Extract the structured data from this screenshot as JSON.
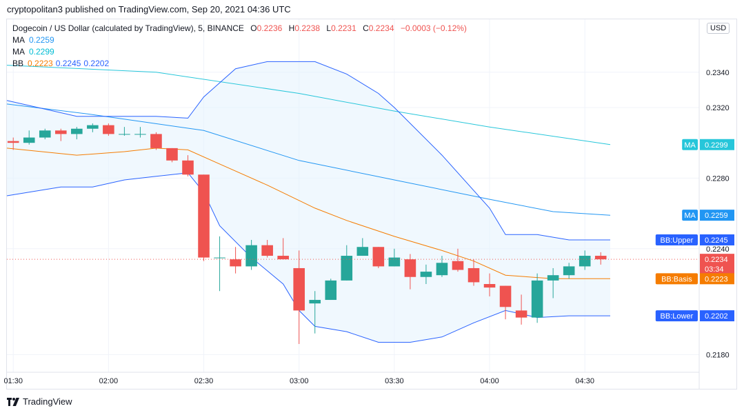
{
  "header": {
    "publisher": "cryptopolitan3 published on TradingView.com, Sep 20, 2021 04:36 UTC"
  },
  "legend": {
    "title": "Dogecoin / US Dollar (calculated by TradingView), 5, BINANCE",
    "ohlc": {
      "o_label": "O",
      "o": "0.2236",
      "h_label": "H",
      "h": "0.2238",
      "l_label": "L",
      "l": "0.2231",
      "c_label": "C",
      "c": "0.2234",
      "change": "−0.0003 (−0.12%)"
    },
    "indicators": [
      {
        "label": "MA",
        "values": [
          "0.2259"
        ],
        "colors": [
          "#2196f3"
        ]
      },
      {
        "label": "MA",
        "values": [
          "0.2299"
        ],
        "colors": [
          "#00bcd4"
        ]
      },
      {
        "label": "BB",
        "values": [
          "0.2223",
          "0.2245",
          "0.2202"
        ],
        "colors": [
          "#f57c00",
          "#2962ff",
          "#2962ff"
        ]
      }
    ]
  },
  "currency": "USD",
  "price_labels": [
    {
      "text": "MA",
      "value": "0.2299",
      "price": 0.2299,
      "color": "#26c6da"
    },
    {
      "text": "MA",
      "value": "0.2259",
      "price": 0.2259,
      "color": "#2196f3"
    },
    {
      "text": "BB:Upper",
      "value": "0.2245",
      "price": 0.2245,
      "color": "#2962ff"
    },
    {
      "text": "",
      "value": "0.2234",
      "sub": "03:34",
      "price": 0.2234,
      "color": "#ef5350"
    },
    {
      "text": "BB:Basis",
      "value": "0.2223",
      "price": 0.2223,
      "color": "#f57c00"
    },
    {
      "text": "BB:Lower",
      "value": "0.2202",
      "price": 0.2202,
      "color": "#2962ff"
    }
  ],
  "footer": {
    "brand": "TradingView"
  },
  "chart_data": {
    "type": "candlestick",
    "interval_minutes": 5,
    "y_ticks": [
      "0.2340",
      "0.2320",
      "0.2280",
      "0.2240",
      "0.2180"
    ],
    "y_range": [
      0.217,
      0.237
    ],
    "x_ticks": [
      {
        "label": "01:30",
        "time": "01:30"
      },
      {
        "label": "02:00",
        "time": "02:00"
      },
      {
        "label": "02:30",
        "time": "02:30"
      },
      {
        "label": "03:00",
        "time": "03:00"
      },
      {
        "label": "03:30",
        "time": "03:30"
      },
      {
        "label": "04:00",
        "time": "04:00"
      },
      {
        "label": "04:30",
        "time": "04:30"
      }
    ],
    "x_range": [
      "01:28",
      "05:06"
    ],
    "colors": {
      "up": "#26a69a",
      "down": "#ef5350",
      "band_fill": "#e3f2fd"
    },
    "candles": [
      {
        "t": "01:30",
        "o": 0.2301,
        "h": 0.2303,
        "l": 0.2296,
        "c": 0.23
      },
      {
        "t": "01:35",
        "o": 0.23,
        "h": 0.2307,
        "l": 0.2299,
        "c": 0.2303
      },
      {
        "t": "01:40",
        "o": 0.2303,
        "h": 0.2308,
        "l": 0.2302,
        "c": 0.2307
      },
      {
        "t": "01:45",
        "o": 0.2307,
        "h": 0.2308,
        "l": 0.2301,
        "c": 0.2305
      },
      {
        "t": "01:50",
        "o": 0.2305,
        "h": 0.2309,
        "l": 0.2302,
        "c": 0.2308
      },
      {
        "t": "01:55",
        "o": 0.2308,
        "h": 0.2311,
        "l": 0.2306,
        "c": 0.231
      },
      {
        "t": "02:00",
        "o": 0.231,
        "h": 0.2311,
        "l": 0.2304,
        "c": 0.2305
      },
      {
        "t": "02:05",
        "o": 0.2305,
        "h": 0.2309,
        "l": 0.2304,
        "c": 0.2305
      },
      {
        "t": "02:10",
        "o": 0.2305,
        "h": 0.2309,
        "l": 0.2303,
        "c": 0.2305
      },
      {
        "t": "02:15",
        "o": 0.2305,
        "h": 0.2306,
        "l": 0.2296,
        "c": 0.2297
      },
      {
        "t": "02:20",
        "o": 0.2297,
        "h": 0.2297,
        "l": 0.2289,
        "c": 0.229
      },
      {
        "t": "02:25",
        "o": 0.229,
        "h": 0.2293,
        "l": 0.2281,
        "c": 0.2282
      },
      {
        "t": "02:30",
        "o": 0.2282,
        "h": 0.2282,
        "l": 0.2233,
        "c": 0.2235
      },
      {
        "t": "02:35",
        "o": 0.2235,
        "h": 0.2247,
        "l": 0.2216,
        "c": 0.2235
      },
      {
        "t": "02:40",
        "o": 0.2234,
        "h": 0.2241,
        "l": 0.2226,
        "c": 0.223
      },
      {
        "t": "02:45",
        "o": 0.223,
        "h": 0.2245,
        "l": 0.2228,
        "c": 0.2242
      },
      {
        "t": "02:50",
        "o": 0.2242,
        "h": 0.2245,
        "l": 0.2235,
        "c": 0.2236
      },
      {
        "t": "02:55",
        "o": 0.2236,
        "h": 0.2246,
        "l": 0.2234,
        "c": 0.2234
      },
      {
        "t": "03:00",
        "o": 0.2229,
        "h": 0.2239,
        "l": 0.2186,
        "c": 0.2205
      },
      {
        "t": "03:05",
        "o": 0.2209,
        "h": 0.2216,
        "l": 0.2192,
        "c": 0.2211
      },
      {
        "t": "03:10",
        "o": 0.2211,
        "h": 0.2223,
        "l": 0.2211,
        "c": 0.2222
      },
      {
        "t": "03:15",
        "o": 0.2222,
        "h": 0.2242,
        "l": 0.2222,
        "c": 0.2236
      },
      {
        "t": "03:20",
        "o": 0.2236,
        "h": 0.2246,
        "l": 0.2236,
        "c": 0.2241
      },
      {
        "t": "03:25",
        "o": 0.2241,
        "h": 0.2241,
        "l": 0.2229,
        "c": 0.223
      },
      {
        "t": "03:30",
        "o": 0.223,
        "h": 0.224,
        "l": 0.223,
        "c": 0.2235
      },
      {
        "t": "03:35",
        "o": 0.2234,
        "h": 0.2237,
        "l": 0.2217,
        "c": 0.2224
      },
      {
        "t": "03:40",
        "o": 0.2224,
        "h": 0.2231,
        "l": 0.222,
        "c": 0.2227
      },
      {
        "t": "03:45",
        "o": 0.2225,
        "h": 0.2236,
        "l": 0.2224,
        "c": 0.2232
      },
      {
        "t": "03:50",
        "o": 0.2233,
        "h": 0.224,
        "l": 0.2227,
        "c": 0.2228
      },
      {
        "t": "03:55",
        "o": 0.2229,
        "h": 0.2234,
        "l": 0.2219,
        "c": 0.2221
      },
      {
        "t": "04:00",
        "o": 0.222,
        "h": 0.2226,
        "l": 0.2213,
        "c": 0.2218
      },
      {
        "t": "04:05",
        "o": 0.2219,
        "h": 0.2219,
        "l": 0.22,
        "c": 0.2207
      },
      {
        "t": "04:10",
        "o": 0.2205,
        "h": 0.2214,
        "l": 0.2197,
        "c": 0.2201
      },
      {
        "t": "04:15",
        "o": 0.2201,
        "h": 0.2226,
        "l": 0.2198,
        "c": 0.2222
      },
      {
        "t": "04:20",
        "o": 0.2222,
        "h": 0.2229,
        "l": 0.2212,
        "c": 0.2225
      },
      {
        "t": "04:25",
        "o": 0.2225,
        "h": 0.2232,
        "l": 0.2223,
        "c": 0.223
      },
      {
        "t": "04:30",
        "o": 0.223,
        "h": 0.2239,
        "l": 0.2228,
        "c": 0.2236
      },
      {
        "t": "04:35",
        "o": 0.2236,
        "h": 0.2238,
        "l": 0.2231,
        "c": 0.2234
      }
    ],
    "lines": [
      {
        "id": "ma-fast",
        "color": "#2196f3",
        "points": [
          [
            "01:28",
            0.2322
          ],
          [
            "01:55",
            0.2316
          ],
          [
            "02:30",
            0.2307
          ],
          [
            "03:00",
            0.229
          ],
          [
            "03:30",
            0.2279
          ],
          [
            "04:00",
            0.2268
          ],
          [
            "04:20",
            0.2261
          ],
          [
            "04:38",
            0.2259
          ]
        ]
      },
      {
        "id": "ma-slow",
        "color": "#26c6da",
        "points": [
          [
            "01:28",
            0.2344
          ],
          [
            "02:15",
            0.234
          ],
          [
            "03:00",
            0.2328
          ],
          [
            "03:30",
            0.2318
          ],
          [
            "04:00",
            0.2309
          ],
          [
            "04:38",
            0.2299
          ]
        ]
      },
      {
        "id": "bb-basis",
        "color": "#f57c00",
        "points": [
          [
            "01:28",
            0.2297
          ],
          [
            "01:50",
            0.2293
          ],
          [
            "02:05",
            0.2295
          ],
          [
            "02:15",
            0.2297
          ],
          [
            "02:25",
            0.2296
          ],
          [
            "02:35",
            0.2288
          ],
          [
            "02:50",
            0.2276
          ],
          [
            "03:05",
            0.2263
          ],
          [
            "03:15",
            0.2256
          ],
          [
            "03:30",
            0.2247
          ],
          [
            "03:45",
            0.2239
          ],
          [
            "03:55",
            0.2233
          ],
          [
            "04:05",
            0.2225
          ],
          [
            "04:20",
            0.2223
          ],
          [
            "04:38",
            0.2223
          ]
        ]
      },
      {
        "id": "bb-upper",
        "color": "#2962ff",
        "points": [
          [
            "01:28",
            0.2324
          ],
          [
            "01:50",
            0.2315
          ],
          [
            "02:15",
            0.2315
          ],
          [
            "02:25",
            0.2314
          ],
          [
            "02:30",
            0.2326
          ],
          [
            "02:40",
            0.2342
          ],
          [
            "02:50",
            0.2346
          ],
          [
            "03:00",
            0.2346
          ],
          [
            "03:05",
            0.2346
          ],
          [
            "03:15",
            0.2339
          ],
          [
            "03:25",
            0.2328
          ],
          [
            "03:30",
            0.232
          ],
          [
            "03:45",
            0.2293
          ],
          [
            "04:00",
            0.2263
          ],
          [
            "04:05",
            0.2248
          ],
          [
            "04:15",
            0.2248
          ],
          [
            "04:25",
            0.2245
          ],
          [
            "04:38",
            0.2245
          ]
        ]
      },
      {
        "id": "bb-lower",
        "color": "#2962ff",
        "points": [
          [
            "01:28",
            0.227
          ],
          [
            "01:45",
            0.2275
          ],
          [
            "01:55",
            0.2275
          ],
          [
            "02:05",
            0.2279
          ],
          [
            "02:15",
            0.2281
          ],
          [
            "02:25",
            0.2283
          ],
          [
            "02:30",
            0.2272
          ],
          [
            "02:35",
            0.2253
          ],
          [
            "02:45",
            0.2235
          ],
          [
            "02:55",
            0.222
          ],
          [
            "03:00",
            0.2205
          ],
          [
            "03:05",
            0.2196
          ],
          [
            "03:15",
            0.2193
          ],
          [
            "03:25",
            0.2187
          ],
          [
            "03:35",
            0.2187
          ],
          [
            "03:45",
            0.219
          ],
          [
            "03:55",
            0.2198
          ],
          [
            "04:05",
            0.2205
          ],
          [
            "04:15",
            0.2201
          ],
          [
            "04:25",
            0.2202
          ],
          [
            "04:38",
            0.2202
          ]
        ]
      }
    ],
    "last_price_line": 0.2234
  }
}
